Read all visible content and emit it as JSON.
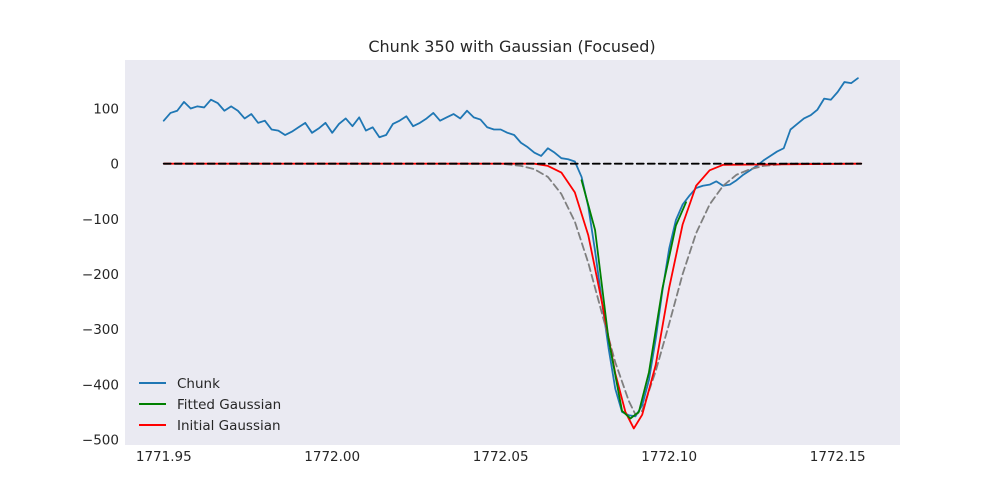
{
  "chart_data": {
    "type": "line",
    "title": "Chunk 350 with Gaussian (Focused)",
    "xlabel": "",
    "ylabel": "",
    "xlim": [
      1771.9385,
      1772.1685
    ],
    "ylim": [
      -510,
      188
    ],
    "x_ticks": [
      1771.95,
      1772.0,
      1772.05,
      1772.1,
      1772.15
    ],
    "x_tick_labels": [
      "1771.95",
      "1772.00",
      "1772.05",
      "1772.10",
      "1772.15"
    ],
    "y_ticks": [
      100,
      0,
      -100,
      -200,
      -300,
      -400,
      -500
    ],
    "y_tick_labels": [
      "100",
      "0",
      "−100",
      "−200",
      "−300",
      "−400",
      "−500"
    ],
    "grid": false,
    "plot_background": "#eaeaf2",
    "legend": {
      "position": "lower-left",
      "entries": [
        {
          "label": "Chunk",
          "color": "#1f77b4"
        },
        {
          "label": "Fitted Gaussian",
          "color": "#008000"
        },
        {
          "label": "Initial Gaussian",
          "color": "#ff0000"
        }
      ]
    },
    "series": [
      {
        "name": "Chunk",
        "color": "#1f77b4",
        "style": "solid",
        "points": [
          [
            1771.95,
            78
          ],
          [
            1771.952,
            92
          ],
          [
            1771.954,
            96
          ],
          [
            1771.956,
            112
          ],
          [
            1771.958,
            100
          ],
          [
            1771.96,
            104
          ],
          [
            1771.962,
            102
          ],
          [
            1771.964,
            116
          ],
          [
            1771.966,
            110
          ],
          [
            1771.968,
            96
          ],
          [
            1771.97,
            104
          ],
          [
            1771.972,
            96
          ],
          [
            1771.974,
            82
          ],
          [
            1771.976,
            90
          ],
          [
            1771.978,
            74
          ],
          [
            1771.98,
            78
          ],
          [
            1771.982,
            62
          ],
          [
            1771.984,
            60
          ],
          [
            1771.986,
            52
          ],
          [
            1771.988,
            58
          ],
          [
            1771.99,
            66
          ],
          [
            1771.992,
            74
          ],
          [
            1771.994,
            56
          ],
          [
            1771.996,
            64
          ],
          [
            1771.998,
            74
          ],
          [
            1772.0,
            56
          ],
          [
            1772.002,
            72
          ],
          [
            1772.004,
            82
          ],
          [
            1772.006,
            68
          ],
          [
            1772.008,
            84
          ],
          [
            1772.01,
            60
          ],
          [
            1772.012,
            66
          ],
          [
            1772.014,
            48
          ],
          [
            1772.016,
            52
          ],
          [
            1772.018,
            72
          ],
          [
            1772.02,
            78
          ],
          [
            1772.022,
            86
          ],
          [
            1772.024,
            68
          ],
          [
            1772.026,
            74
          ],
          [
            1772.028,
            82
          ],
          [
            1772.03,
            92
          ],
          [
            1772.032,
            78
          ],
          [
            1772.034,
            84
          ],
          [
            1772.036,
            90
          ],
          [
            1772.038,
            82
          ],
          [
            1772.04,
            96
          ],
          [
            1772.042,
            84
          ],
          [
            1772.044,
            80
          ],
          [
            1772.046,
            66
          ],
          [
            1772.048,
            62
          ],
          [
            1772.05,
            62
          ],
          [
            1772.052,
            56
          ],
          [
            1772.054,
            52
          ],
          [
            1772.056,
            38
          ],
          [
            1772.058,
            30
          ],
          [
            1772.06,
            20
          ],
          [
            1772.062,
            14
          ],
          [
            1772.064,
            28
          ],
          [
            1772.066,
            20
          ],
          [
            1772.068,
            10
          ],
          [
            1772.07,
            8
          ],
          [
            1772.072,
            4
          ],
          [
            1772.074,
            -24
          ],
          [
            1772.076,
            -78
          ],
          [
            1772.078,
            -158
          ],
          [
            1772.08,
            -248
          ],
          [
            1772.082,
            -334
          ],
          [
            1772.084,
            -408
          ],
          [
            1772.086,
            -450
          ],
          [
            1772.088,
            -456
          ],
          [
            1772.09,
            -458
          ],
          [
            1772.092,
            -438
          ],
          [
            1772.094,
            -392
          ],
          [
            1772.096,
            -318
          ],
          [
            1772.098,
            -230
          ],
          [
            1772.1,
            -154
          ],
          [
            1772.102,
            -102
          ],
          [
            1772.104,
            -74
          ],
          [
            1772.106,
            -58
          ],
          [
            1772.108,
            -44
          ],
          [
            1772.11,
            -40
          ],
          [
            1772.112,
            -38
          ],
          [
            1772.114,
            -32
          ],
          [
            1772.116,
            -40
          ],
          [
            1772.118,
            -38
          ],
          [
            1772.12,
            -30
          ],
          [
            1772.122,
            -20
          ],
          [
            1772.124,
            -12
          ],
          [
            1772.126,
            -4
          ],
          [
            1772.128,
            6
          ],
          [
            1772.13,
            14
          ],
          [
            1772.132,
            22
          ],
          [
            1772.134,
            28
          ],
          [
            1772.136,
            62
          ],
          [
            1772.138,
            72
          ],
          [
            1772.14,
            82
          ],
          [
            1772.142,
            88
          ],
          [
            1772.144,
            98
          ],
          [
            1772.146,
            118
          ],
          [
            1772.148,
            116
          ],
          [
            1772.15,
            130
          ],
          [
            1772.152,
            148
          ],
          [
            1772.154,
            146
          ],
          [
            1772.156,
            155
          ]
        ]
      },
      {
        "name": "",
        "color": "#7f7f7f",
        "style": "dashed",
        "points": [
          [
            1771.95,
            0
          ],
          [
            1772.05,
            0
          ],
          [
            1772.056,
            -4
          ],
          [
            1772.06,
            -10
          ],
          [
            1772.064,
            -24
          ],
          [
            1772.068,
            -55
          ],
          [
            1772.072,
            -105
          ],
          [
            1772.076,
            -180
          ],
          [
            1772.08,
            -270
          ],
          [
            1772.084,
            -360
          ],
          [
            1772.088,
            -430
          ],
          [
            1772.09,
            -455
          ],
          [
            1772.092,
            -448
          ],
          [
            1772.096,
            -376
          ],
          [
            1772.1,
            -290
          ],
          [
            1772.104,
            -200
          ],
          [
            1772.108,
            -126
          ],
          [
            1772.112,
            -74
          ],
          [
            1772.116,
            -40
          ],
          [
            1772.12,
            -20
          ],
          [
            1772.124,
            -10
          ],
          [
            1772.128,
            -4
          ],
          [
            1772.135,
            0
          ],
          [
            1772.157,
            0
          ]
        ]
      },
      {
        "name": "Initial Gaussian",
        "color": "#ff0000",
        "style": "solid",
        "points": [
          [
            1771.95,
            0
          ],
          [
            1772.06,
            0
          ],
          [
            1772.064,
            -4
          ],
          [
            1772.068,
            -16
          ],
          [
            1772.072,
            -52
          ],
          [
            1772.076,
            -130
          ],
          [
            1772.08,
            -250
          ],
          [
            1772.084,
            -380
          ],
          [
            1772.087,
            -450
          ],
          [
            1772.0895,
            -480
          ],
          [
            1772.092,
            -455
          ],
          [
            1772.096,
            -365
          ],
          [
            1772.1,
            -225
          ],
          [
            1772.104,
            -110
          ],
          [
            1772.108,
            -40
          ],
          [
            1772.112,
            -12
          ],
          [
            1772.116,
            -2
          ],
          [
            1772.157,
            0
          ]
        ]
      },
      {
        "name": "Fitted Gaussian",
        "color": "#008000",
        "style": "solid",
        "points": [
          [
            1772.074,
            -30
          ],
          [
            1772.078,
            -120
          ],
          [
            1772.082,
            -318
          ],
          [
            1772.086,
            -448
          ],
          [
            1772.0885,
            -462
          ],
          [
            1772.091,
            -450
          ],
          [
            1772.094,
            -378
          ],
          [
            1772.098,
            -226
          ],
          [
            1772.102,
            -112
          ],
          [
            1772.105,
            -70
          ]
        ]
      },
      {
        "name": "",
        "color": "#000000",
        "style": "dashed",
        "points": [
          [
            1771.95,
            0
          ],
          [
            1772.157,
            0
          ]
        ]
      }
    ]
  }
}
